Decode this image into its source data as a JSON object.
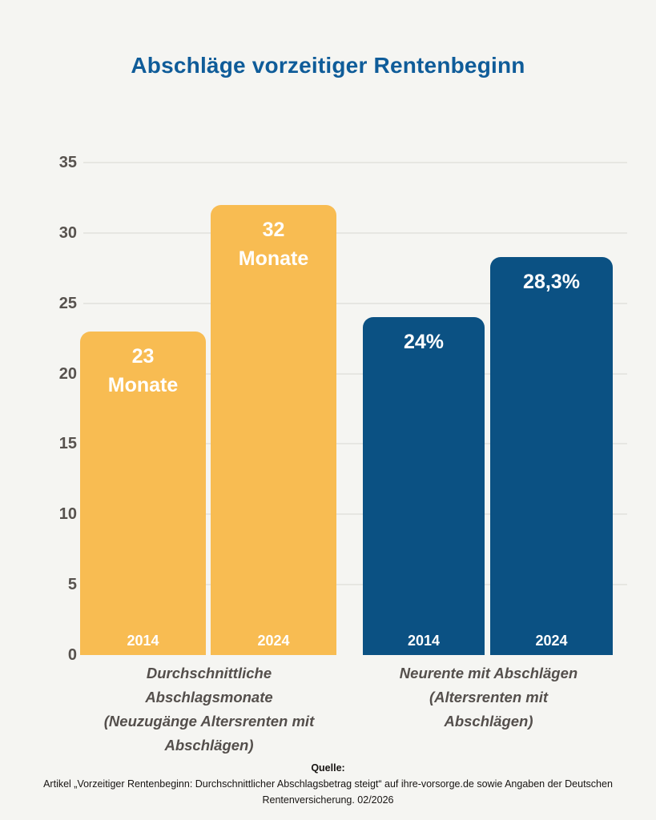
{
  "title": "Abschläge vorzeitiger Rentenbeginn",
  "colors": {
    "background": "#F5F5F2",
    "title_blue": "#0F5C99",
    "bar_yellow": "#F8BC52",
    "bar_blue": "#0B5183",
    "gridline": "#E6E6E2",
    "tick_text": "#57524E",
    "category_text": "#544F4C"
  },
  "chart_data": {
    "type": "bar",
    "title": "Abschläge vorzeitiger Rentenbeginn",
    "ylim": [
      0,
      35
    ],
    "yticks": [
      0,
      5,
      10,
      15,
      20,
      25,
      30,
      35
    ],
    "grid": "horizontal",
    "legend": "none",
    "groups": [
      {
        "label": "Durchschnittliche Abschlagsmonate (Neuzugänge Altersrenten mit Abschlägen)",
        "label_lines": [
          "Durchschnittliche",
          "Abschlagsmonate",
          "(Neuzugänge Altersrenten mit",
          "Abschlägen)"
        ],
        "color": "#F8BC52",
        "bars": [
          {
            "year": "2014",
            "value": 23,
            "value_label_lines": [
              "23",
              "Monate"
            ]
          },
          {
            "year": "2024",
            "value": 32,
            "value_label_lines": [
              "32",
              "Monate"
            ]
          }
        ]
      },
      {
        "label": "Neurente mit Abschlägen (Altersrenten mit Abschlägen)",
        "label_lines": [
          "Neurente mit Abschlägen",
          "(Altersrenten mit",
          "Abschlägen)"
        ],
        "color": "#0B5183",
        "bars": [
          {
            "year": "2014",
            "value": 24,
            "value_label_lines": [
              "24%"
            ]
          },
          {
            "year": "2024",
            "value": 28.3,
            "value_label_lines": [
              "28,3%"
            ]
          }
        ]
      }
    ]
  },
  "footer": {
    "heading": "Quelle:",
    "line1": "Artikel „Vorzeitiger Rentenbeginn: Durchschnittlicher Abschlagsbetrag steigt“ auf ihre-vorsorge.de sowie Angaben der Deutschen",
    "line2": "Rentenversicherung. 02/2026"
  }
}
